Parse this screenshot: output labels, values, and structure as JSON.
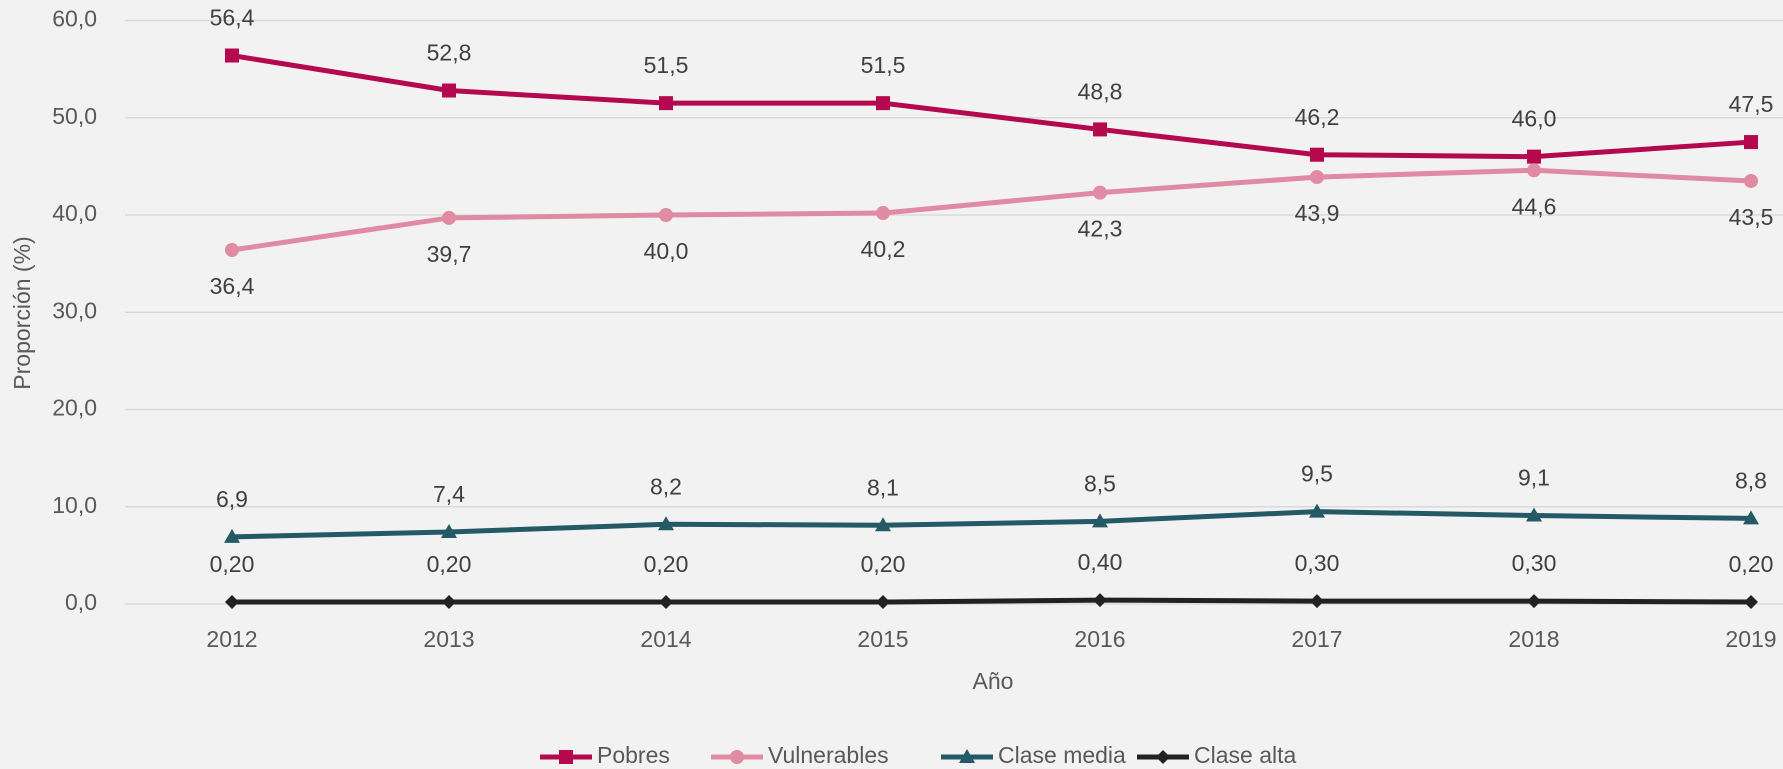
{
  "chart_data": {
    "type": "line",
    "x_label": "Año",
    "y_label": "Proporción (%)",
    "categories": [
      "2012",
      "2013",
      "2014",
      "2015",
      "2016",
      "2017",
      "2018",
      "2019"
    ],
    "series": [
      {
        "name": "Pobres",
        "color": "#b5094f",
        "marker": "square",
        "label_position": "above",
        "values": [
          56.4,
          52.8,
          51.5,
          51.5,
          48.8,
          46.2,
          46.0,
          47.5
        ],
        "value_labels": [
          "56,4",
          "52,8",
          "51,5",
          "51,5",
          "48,8",
          "46,2",
          "46,0",
          "47,5"
        ]
      },
      {
        "name": "Vulnerables",
        "color": "#e08aa3",
        "marker": "circle",
        "label_position": "below",
        "values": [
          36.4,
          39.7,
          40.0,
          40.2,
          42.3,
          43.9,
          44.6,
          43.5
        ],
        "value_labels": [
          "36,4",
          "39,7",
          "40,0",
          "40,2",
          "42,3",
          "43,9",
          "44,6",
          "43,5"
        ]
      },
      {
        "name": "Clase media",
        "color": "#245a66",
        "marker": "triangle",
        "label_position": "above",
        "values": [
          6.9,
          7.4,
          8.2,
          8.1,
          8.5,
          9.5,
          9.1,
          8.8
        ],
        "value_labels": [
          "6,9",
          "7,4",
          "8,2",
          "8,1",
          "8,5",
          "9,5",
          "9,1",
          "8,8"
        ]
      },
      {
        "name": "Clase alta",
        "color": "#222222",
        "marker": "diamond",
        "label_position": "above",
        "values": [
          0.2,
          0.2,
          0.2,
          0.2,
          0.4,
          0.3,
          0.3,
          0.2
        ],
        "value_labels": [
          "0,20",
          "0,20",
          "0,20",
          "0,20",
          "0,40",
          "0,30",
          "0,30",
          "0,20"
        ]
      }
    ],
    "ylim": [
      0,
      60
    ],
    "yticks": [
      {
        "value": 0,
        "label": "0,0"
      },
      {
        "value": 10,
        "label": "10,0"
      },
      {
        "value": 20,
        "label": "20,0"
      },
      {
        "value": 30,
        "label": "30,0"
      },
      {
        "value": 40,
        "label": "40,0"
      },
      {
        "value": 50,
        "label": "50,0"
      },
      {
        "value": 60,
        "label": "60,0"
      }
    ],
    "grid": true,
    "legend": "bottom"
  }
}
